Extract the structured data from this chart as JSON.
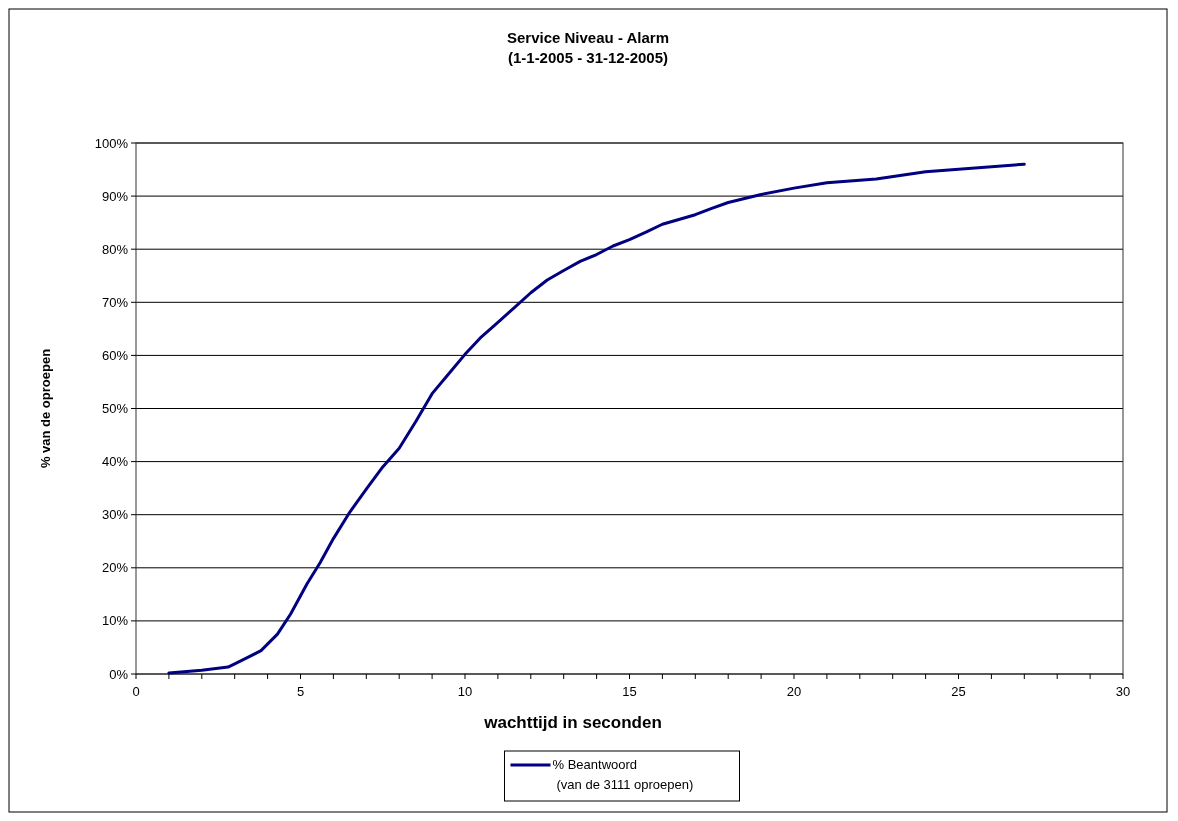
{
  "chart_data": {
    "type": "line",
    "title": "Service Niveau - Alarm",
    "subtitle": "(1-1-2005 - 31-12-2005)",
    "xlabel": "wachttijd in seconden",
    "ylabel": "% van de oproepen",
    "series": [
      {
        "name": "% Beantwoord\n(van de 3111 oproepen)",
        "color": "#000080",
        "x": [
          1,
          2,
          2.8,
          3.2,
          3.8,
          4.3,
          4.7,
          5.2,
          5.6,
          6,
          6.5,
          7,
          7.5,
          8,
          8.5,
          9,
          9.5,
          10,
          10.5,
          11,
          11.5,
          12,
          12.5,
          13,
          13.5,
          14,
          14.5,
          15,
          15.5,
          16,
          17,
          17.5,
          18,
          19,
          20,
          21,
          22.5,
          24,
          27
        ],
        "values": [
          0.2,
          0.7,
          1.3,
          2.5,
          4.4,
          7.5,
          11.3,
          17,
          21,
          25.5,
          30.5,
          34.8,
          39,
          42.5,
          47.5,
          52.8,
          56.5,
          60.2,
          63.5,
          66.2,
          69,
          71.8,
          74.2,
          76,
          77.7,
          79,
          80.6,
          81.8,
          83.2,
          84.7,
          86.5,
          87.7,
          88.8,
          90.3,
          91.5,
          92.5,
          93.2,
          94.6,
          96
        ]
      }
    ],
    "xlim": [
      0,
      30
    ],
    "xticks": [
      0,
      {
        "value": 1,
        "label": null
      },
      {
        "value": 2,
        "label": null
      },
      {
        "value": 3,
        "label": null
      },
      {
        "value": 4,
        "label": null
      },
      5,
      {
        "value": 6,
        "label": null
      },
      {
        "value": 7,
        "label": null
      },
      {
        "value": 8,
        "label": null
      },
      {
        "value": 9,
        "label": null
      },
      10,
      {
        "value": 11,
        "label": null
      },
      {
        "value": 12,
        "label": null
      },
      {
        "value": 13,
        "label": null
      },
      {
        "value": 14,
        "label": null
      },
      15,
      {
        "value": 16,
        "label": null
      },
      {
        "value": 17,
        "label": null
      },
      {
        "value": 18,
        "label": null
      },
      {
        "value": 19,
        "label": null
      },
      20,
      {
        "value": 21,
        "label": null
      },
      {
        "value": 22,
        "label": null
      },
      {
        "value": 23,
        "label": null
      },
      {
        "value": 24,
        "label": null
      },
      25,
      {
        "value": 26,
        "label": null
      },
      {
        "value": 27,
        "label": null
      },
      {
        "value": 28,
        "label": null
      },
      {
        "value": 29,
        "label": null
      },
      30
    ],
    "ylim": [
      0,
      100
    ],
    "yticks": [
      {
        "value": 0,
        "label": "0%"
      },
      {
        "value": 10,
        "label": "10%"
      },
      {
        "value": 20,
        "label": "20%"
      },
      {
        "value": 30,
        "label": "30%"
      },
      {
        "value": 40,
        "label": "40%"
      },
      {
        "value": 50,
        "label": "50%"
      },
      {
        "value": 60,
        "label": "60%"
      },
      {
        "value": 70,
        "label": "70%"
      },
      {
        "value": 80,
        "label": "80%"
      },
      {
        "value": 90,
        "label": "90%"
      },
      {
        "value": 100,
        "label": "100%"
      }
    ],
    "grid": "y",
    "legend": "bottom",
    "marker": "none",
    "line_style": "solid"
  }
}
